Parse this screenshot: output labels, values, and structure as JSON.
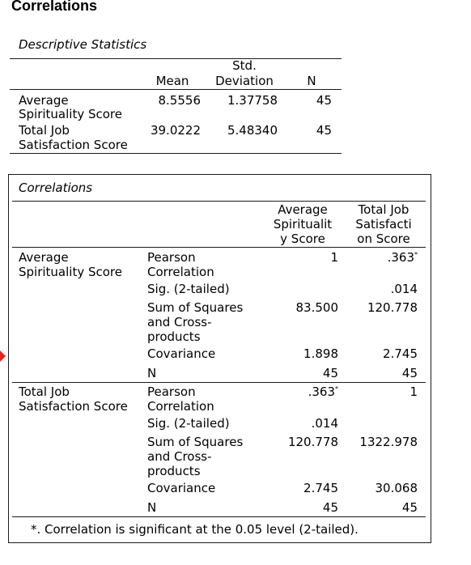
{
  "page_title": "Correlations",
  "descriptive": {
    "title": "Descriptive Statistics",
    "headers": {
      "mean": "Mean",
      "std_line1": "Std.",
      "std_line2": "Deviation",
      "n": "N"
    },
    "rows": [
      {
        "label1": "Average",
        "label2": "Spirituality Score",
        "mean": "8.5556",
        "std": "1.37758",
        "n": "45"
      },
      {
        "label1": "Total Job",
        "label2": "Satisfaction Score",
        "mean": "39.0222",
        "std": "5.48340",
        "n": "45"
      }
    ]
  },
  "correlations": {
    "title": "Correlations",
    "col1": {
      "l1": "Average",
      "l2": "Spiritualit",
      "l3": "y Score"
    },
    "col2": {
      "l1": "Total Job",
      "l2": "Satisfacti",
      "l3": "on Score"
    },
    "var1": {
      "l1": "Average",
      "l2": "Spirituality Score"
    },
    "var2": {
      "l1": "Total Job",
      "l2": "Satisfaction Score"
    },
    "stats": {
      "pearson_1": "Pearson",
      "pearson_2": "Correlation",
      "sig": "Sig. (2-tailed)",
      "ssq_1": "Sum of Squares",
      "ssq_2": "and Cross-",
      "ssq_3": "products",
      "cov": "Covariance",
      "n": "N"
    },
    "block1": {
      "pearson": [
        "1",
        ".363"
      ],
      "pearson_star": [
        "",
        "*"
      ],
      "sig": [
        "",
        ".014"
      ],
      "ssq": [
        "83.500",
        "120.778"
      ],
      "cov": [
        "1.898",
        "2.745"
      ],
      "n": [
        "45",
        "45"
      ]
    },
    "block2": {
      "pearson": [
        ".363",
        "1"
      ],
      "pearson_star": [
        "*",
        ""
      ],
      "sig": [
        ".014",
        ""
      ],
      "ssq": [
        "120.778",
        "1322.978"
      ],
      "cov": [
        "2.745",
        "30.068"
      ],
      "n": [
        "45",
        "45"
      ]
    },
    "footnote": "*. Correlation is significant at the 0.05 level (2-tailed)."
  }
}
